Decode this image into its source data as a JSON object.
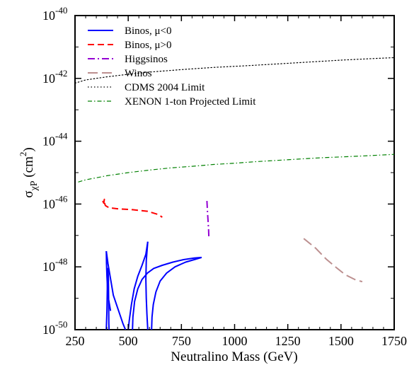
{
  "chart_data": {
    "type": "line",
    "xlabel": "Neutralino Mass (GeV)",
    "ylabel": {
      "base": "σ",
      "sub": "χP",
      "unit_open": " (cm",
      "unit_sup": "2",
      "unit_close": ")"
    },
    "xlim": [
      250,
      1750
    ],
    "ylim_log10": [
      -50,
      -40
    ],
    "y_scale": "log",
    "x_ticks": [
      250,
      500,
      750,
      1000,
      1250,
      1500,
      1750
    ],
    "x_tick_labels": [
      "250",
      "500",
      "750",
      "1000",
      "1250",
      "1500",
      "1750"
    ],
    "y_ticks_log10": [
      -50,
      -48,
      -46,
      -44,
      -42,
      -40
    ],
    "y_tick_labels": [
      {
        "base": "10",
        "exp": "-50"
      },
      {
        "base": "10",
        "exp": "-48"
      },
      {
        "base": "10",
        "exp": "-46"
      },
      {
        "base": "10",
        "exp": "-44"
      },
      {
        "base": "10",
        "exp": "-42"
      },
      {
        "base": "10",
        "exp": "-40"
      }
    ],
    "legend_position": "top-left",
    "series": [
      {
        "name": "Binos, μ<0",
        "color": "#0000ff",
        "dash": "solid",
        "segments": [
          [
            [
              397,
              -50
            ],
            [
              400,
              -49.4
            ],
            [
              402,
              -48.6
            ],
            [
              404,
              -48.2
            ],
            [
              405,
              -48.05
            ],
            [
              407,
              -48.4
            ],
            [
              408,
              -49.0
            ],
            [
              409,
              -49.8
            ],
            [
              410,
              -50
            ]
          ],
          [
            [
              397,
              -47.5
            ],
            [
              398,
              -47.9
            ],
            [
              400,
              -48.3
            ],
            [
              403,
              -48.7
            ],
            [
              407,
              -49.0
            ],
            [
              412,
              -49.2
            ],
            [
              417,
              -49.4
            ]
          ],
          [
            [
              397,
              -47.5
            ],
            [
              405,
              -47.9
            ],
            [
              415,
              -48.3
            ],
            [
              430,
              -48.9
            ],
            [
              450,
              -49.3
            ],
            [
              465,
              -49.6
            ],
            [
              475,
              -49.8
            ],
            [
              487,
              -50
            ]
          ],
          [
            [
              500,
              -50
            ],
            [
              505,
              -49.7
            ],
            [
              515,
              -49.2
            ],
            [
              528,
              -48.7
            ],
            [
              545,
              -48.3
            ],
            [
              565,
              -47.95
            ],
            [
              583,
              -47.6
            ],
            [
              592,
              -47.2
            ]
          ],
          [
            [
              592,
              -47.2
            ],
            [
              585,
              -47.8
            ],
            [
              583,
              -48.4
            ],
            [
              585,
              -49.0
            ],
            [
              588,
              -49.5
            ],
            [
              592,
              -50
            ]
          ],
          [
            [
              520,
              -50
            ],
            [
              522,
              -49.6
            ],
            [
              530,
              -49.1
            ],
            [
              545,
              -48.7
            ],
            [
              565,
              -48.4
            ],
            [
              590,
              -48.2
            ],
            [
              620,
              -48.05
            ],
            [
              660,
              -47.95
            ],
            [
              710,
              -47.85
            ],
            [
              760,
              -47.77
            ],
            [
              810,
              -47.72
            ],
            [
              845,
              -47.7
            ]
          ],
          [
            [
              610,
              -50
            ],
            [
              612,
              -49.6
            ],
            [
              618,
              -49.2
            ],
            [
              630,
              -48.8
            ],
            [
              650,
              -48.45
            ],
            [
              680,
              -48.2
            ],
            [
              720,
              -48.0
            ],
            [
              770,
              -47.85
            ],
            [
              810,
              -47.77
            ],
            [
              845,
              -47.7
            ]
          ]
        ]
      },
      {
        "name": "Binos, μ>0",
        "color": "#ff0000",
        "dash": "dashed",
        "segments": [
          [
            [
              380,
              -45.9
            ],
            [
              385,
              -45.97
            ],
            [
              388,
              -45.85
            ],
            [
              390,
              -46.0
            ],
            [
              393,
              -46.05
            ],
            [
              410,
              -46.12
            ],
            [
              450,
              -46.15
            ],
            [
              520,
              -46.18
            ],
            [
              590,
              -46.23
            ],
            [
              640,
              -46.33
            ],
            [
              660,
              -46.42
            ]
          ]
        ]
      },
      {
        "name": "Higgsinos",
        "color": "#9400d3",
        "dash": "dashdot",
        "segments": [
          [
            [
              870,
              -45.9
            ],
            [
              873,
              -46.3
            ],
            [
              876,
              -46.6
            ],
            [
              878,
              -46.85
            ],
            [
              879,
              -47.05
            ]
          ]
        ]
      },
      {
        "name": "Winos",
        "color": "#bc8f8f",
        "dash": "longdash",
        "segments": [
          [
            [
              1325,
              -47.1
            ],
            [
              1380,
              -47.4
            ],
            [
              1430,
              -47.75
            ],
            [
              1470,
              -47.98
            ],
            [
              1520,
              -48.25
            ],
            [
              1570,
              -48.42
            ],
            [
              1600,
              -48.47
            ]
          ]
        ]
      },
      {
        "name": "CDMS 2004 Limit",
        "color": "#000000",
        "dash": "dotted",
        "segments": [
          [
            [
              250,
              -42.15
            ],
            [
              300,
              -42.05
            ],
            [
              400,
              -41.95
            ],
            [
              500,
              -41.87
            ],
            [
              600,
              -41.8
            ],
            [
              750,
              -41.72
            ],
            [
              900,
              -41.65
            ],
            [
              1050,
              -41.6
            ],
            [
              1200,
              -41.54
            ],
            [
              1350,
              -41.48
            ],
            [
              1500,
              -41.42
            ],
            [
              1650,
              -41.37
            ],
            [
              1750,
              -41.34
            ]
          ]
        ]
      },
      {
        "name": "XENON 1-ton Projected Limit",
        "color": "#008000",
        "dash": "dashdotgreen",
        "segments": [
          [
            [
              265,
              -45.3
            ],
            [
              300,
              -45.23
            ],
            [
              400,
              -45.1
            ],
            [
              500,
              -45.0
            ],
            [
              600,
              -44.92
            ],
            [
              700,
              -44.85
            ],
            [
              800,
              -44.8
            ],
            [
              900,
              -44.74
            ],
            [
              1000,
              -44.7
            ],
            [
              1100,
              -44.65
            ],
            [
              1200,
              -44.61
            ],
            [
              1300,
              -44.57
            ],
            [
              1400,
              -44.53
            ],
            [
              1500,
              -44.5
            ],
            [
              1600,
              -44.47
            ],
            [
              1750,
              -44.42
            ]
          ]
        ]
      }
    ]
  }
}
